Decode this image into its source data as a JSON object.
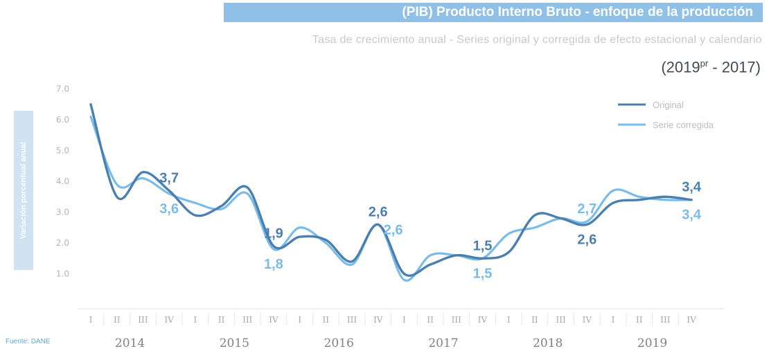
{
  "header": {
    "title": "(PIB) Producto Interno Bruto - enfoque de la producción",
    "subtitle": "Tasa de crecimiento anual - Series original y corregida de efecto estacional y calendario",
    "period_prefix": "(2019",
    "period_sup": "pr",
    "period_suffix": " - 2017)"
  },
  "y_axis_label": "Variación porcentual anual",
  "source": "Fuente: DANE",
  "colors": {
    "original": "#4a7fb0",
    "corregida": "#79bce9",
    "title_bg": "#8fc1e8"
  },
  "chart_data": {
    "type": "line",
    "title": "(PIB) Producto Interno Bruto - enfoque de la producción",
    "ylim": [
      0,
      7
    ],
    "y_ticks": [
      "1.0",
      "2.0",
      "3.0",
      "4.0",
      "5.0",
      "6.0",
      "7.0"
    ],
    "grid": false,
    "legend_position": "top-right",
    "quarter_labels": [
      "I",
      "II",
      "III",
      "IV",
      "I",
      "II",
      "III",
      "IV",
      "I",
      "II",
      "III",
      "IV",
      "I",
      "II",
      "III",
      "IV",
      "I",
      "II",
      "III",
      "IV",
      "I",
      "II",
      "III",
      "IV"
    ],
    "years": [
      "2014",
      "2015",
      "2016",
      "2017",
      "2018",
      "2019"
    ],
    "x": [
      "2014-I",
      "2014-II",
      "2014-III",
      "2014-IV",
      "2015-I",
      "2015-II",
      "2015-III",
      "2015-IV",
      "2016-I",
      "2016-II",
      "2016-III",
      "2016-IV",
      "2017-I",
      "2017-II",
      "2017-III",
      "2017-IV",
      "2018-I",
      "2018-II",
      "2018-III",
      "2018-IV",
      "2019-I",
      "2019-II",
      "2019-III",
      "2019-IV"
    ],
    "series": [
      {
        "name": "Original",
        "values": [
          6.5,
          3.5,
          4.3,
          3.7,
          2.9,
          3.2,
          3.8,
          1.9,
          2.2,
          2.1,
          1.4,
          2.6,
          1.0,
          1.3,
          1.6,
          1.5,
          1.7,
          2.9,
          2.8,
          2.6,
          3.3,
          3.4,
          3.5,
          3.4
        ]
      },
      {
        "name": "Serie corregida",
        "values": [
          6.1,
          3.9,
          4.1,
          3.6,
          3.3,
          3.1,
          3.6,
          1.8,
          2.5,
          2.0,
          1.3,
          2.6,
          0.8,
          1.6,
          1.6,
          1.5,
          2.3,
          2.5,
          2.8,
          2.7,
          3.7,
          3.5,
          3.4,
          3.4
        ]
      }
    ],
    "annotations": [
      {
        "series": 0,
        "index": 3,
        "text": "3,7",
        "position": "above"
      },
      {
        "series": 1,
        "index": 3,
        "text": "3,6",
        "position": "below"
      },
      {
        "series": 0,
        "index": 7,
        "text": "1,9",
        "position": "above"
      },
      {
        "series": 1,
        "index": 7,
        "text": "1,8",
        "position": "below"
      },
      {
        "series": 0,
        "index": 11,
        "text": "2,6",
        "position": "above"
      },
      {
        "series": 1,
        "index": 11,
        "text": "2,6",
        "position": "right"
      },
      {
        "series": 0,
        "index": 15,
        "text": "1,5",
        "position": "above"
      },
      {
        "series": 1,
        "index": 15,
        "text": "1,5",
        "position": "below"
      },
      {
        "series": 1,
        "index": 19,
        "text": "2,7",
        "position": "above"
      },
      {
        "series": 0,
        "index": 19,
        "text": "2,6",
        "position": "below"
      },
      {
        "series": 0,
        "index": 23,
        "text": "3,4",
        "position": "above"
      },
      {
        "series": 1,
        "index": 23,
        "text": "3,4",
        "position": "below"
      }
    ]
  }
}
